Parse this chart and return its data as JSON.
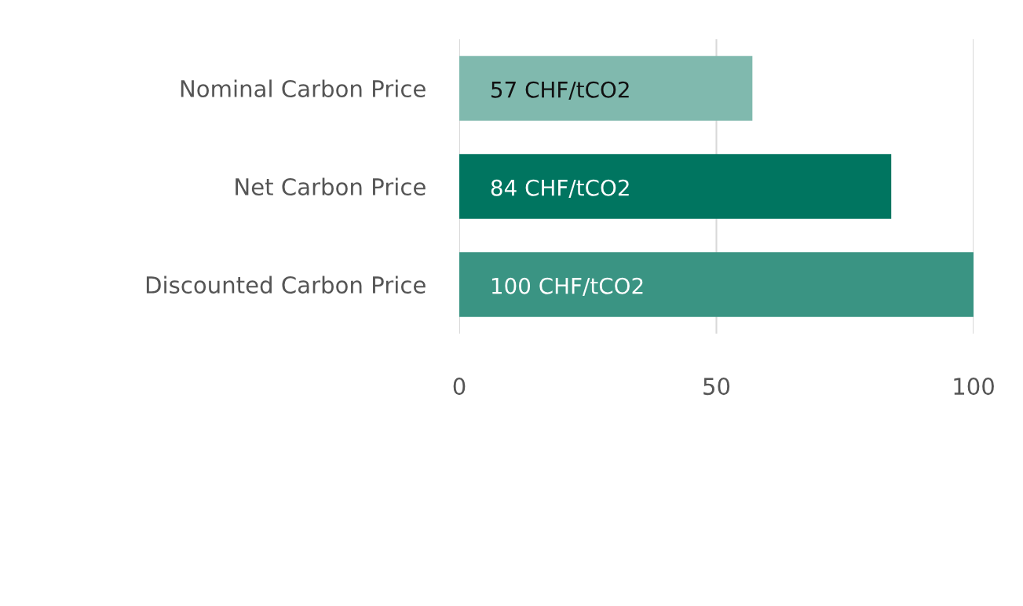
{
  "chart_data": {
    "type": "bar",
    "orientation": "horizontal",
    "categories": [
      "Nominal Carbon Price",
      "Net Carbon Price",
      "Discounted Carbon Price"
    ],
    "values": [
      57,
      84,
      100
    ],
    "colors": [
      "#80b9ae",
      "#007560",
      "#3a9483"
    ],
    "value_labels": [
      "57 CHF/tCO2",
      "84 CHF/tCO2",
      "100 CHF/tCO2"
    ],
    "xlim": [
      0,
      100
    ],
    "xticks": [
      0,
      50,
      100
    ],
    "grid": "x"
  }
}
